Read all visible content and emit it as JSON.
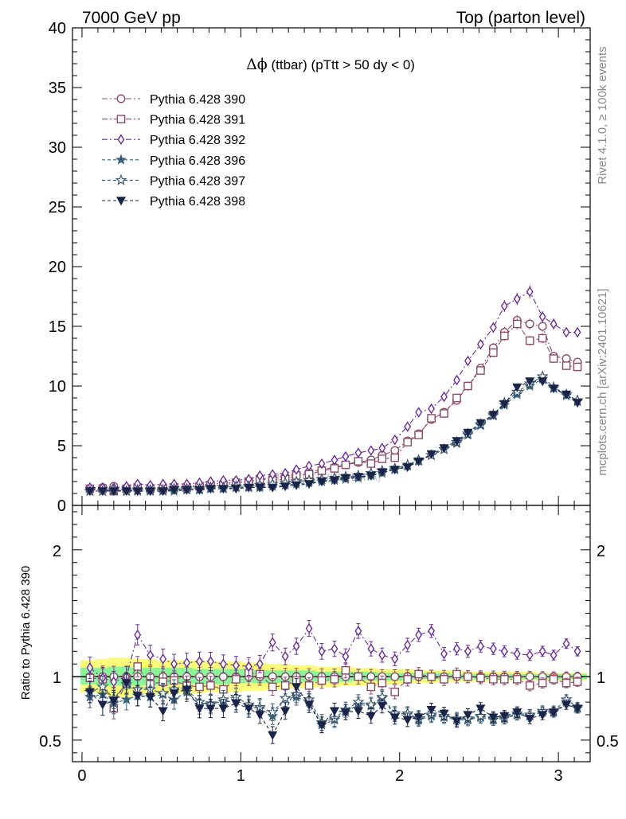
{
  "header": {
    "left": "7000 GeV pp",
    "right": "Top (parton level)"
  },
  "side_labels": {
    "rivet": "Rivet 4.1.0, ≥ 100k events",
    "mcplots": "mcplots.cern.ch [arXiv:2401.10621]"
  },
  "chart_data": {
    "type": "line",
    "title": "Δϕ (ttbar) (pTtt > 50 dy < 0)",
    "title_symbol": "Δϕ",
    "title_rest": " (ttbar) (pTtt > 50 dy < 0)",
    "watermark": "MC PLOTS (HEPDATA)",
    "xlim": [
      -0.06,
      3.2
    ],
    "ylim_main": [
      0,
      40
    ],
    "ylim_ratio": [
      0.33,
      2.35
    ],
    "x_ticks": [
      0,
      1,
      2,
      3
    ],
    "y_ticks_main": [
      0,
      5,
      10,
      15,
      20,
      25,
      30,
      35,
      40
    ],
    "y_ticks_ratio": [
      0.5,
      1,
      2
    ],
    "ratio_ylabel": "Ratio to Pythia 6.428 390",
    "x": [
      0.05,
      0.13,
      0.2,
      0.28,
      0.35,
      0.43,
      0.51,
      0.58,
      0.66,
      0.74,
      0.81,
      0.89,
      0.97,
      1.05,
      1.12,
      1.2,
      1.28,
      1.35,
      1.43,
      1.51,
      1.59,
      1.66,
      1.74,
      1.82,
      1.89,
      1.97,
      2.05,
      2.12,
      2.2,
      2.28,
      2.36,
      2.43,
      2.51,
      2.59,
      2.66,
      2.74,
      2.82,
      2.9,
      2.97,
      3.05,
      3.12
    ],
    "series": [
      {
        "name": "Pythia 6.428 390",
        "color": "#8b4c6b",
        "marker": "circle",
        "dash": "7,3,2,3",
        "values": [
          1.4,
          1.5,
          1.6,
          1.4,
          1.4,
          1.5,
          1.5,
          1.6,
          1.6,
          1.7,
          1.8,
          1.9,
          1.9,
          2.0,
          2.2,
          2.3,
          2.4,
          2.6,
          2.8,
          3.0,
          3.2,
          3.4,
          3.6,
          3.8,
          4.2,
          4.6,
          5.4,
          6.0,
          7.2,
          7.8,
          8.8,
          10.0,
          11.5,
          13.2,
          14.5,
          15.5,
          15.2,
          15.0,
          12.5,
          12.3,
          12.0
        ],
        "ratio": [
          1.0,
          1.0,
          1.0,
          1.0,
          1.0,
          1.0,
          1.0,
          1.0,
          1.0,
          1.0,
          1.0,
          1.0,
          1.0,
          1.0,
          1.0,
          1.0,
          1.0,
          1.0,
          1.0,
          1.0,
          1.0,
          1.0,
          1.0,
          1.0,
          1.0,
          1.0,
          1.0,
          1.0,
          1.0,
          1.0,
          1.0,
          1.0,
          1.0,
          1.0,
          1.0,
          1.0,
          1.0,
          1.0,
          1.0,
          1.0,
          1.0
        ]
      },
      {
        "name": "Pythia 6.428 391",
        "color": "#8b4c6b",
        "marker": "square",
        "dash": "7,3,2,3",
        "values": [
          1.4,
          1.4,
          1.2,
          1.4,
          1.5,
          1.4,
          1.4,
          1.5,
          1.5,
          1.6,
          1.7,
          1.7,
          1.9,
          2.0,
          2.2,
          2.1,
          2.2,
          2.5,
          2.6,
          2.9,
          3.1,
          3.4,
          3.7,
          3.5,
          3.9,
          4.0,
          5.3,
          5.9,
          7.3,
          7.7,
          9.0,
          10.0,
          11.3,
          12.8,
          14.2,
          15.2,
          13.8,
          14.0,
          12.3,
          11.7,
          11.6
        ],
        "ratio": [
          0.99,
          0.98,
          0.75,
          0.95,
          1.08,
          0.94,
          0.96,
          0.97,
          0.93,
          0.92,
          0.93,
          0.9,
          0.98,
          1.03,
          1.02,
          0.92,
          0.93,
          0.97,
          0.93,
          0.97,
          0.98,
          1.05,
          1.0,
          0.92,
          0.95,
          0.88,
          0.98,
          1.02,
          1.0,
          0.98,
          1.02,
          1.0,
          0.99,
          0.98,
          0.98,
          0.98,
          0.93,
          0.95,
          0.98,
          0.95,
          0.96
        ]
      },
      {
        "name": "Pythia 6.428 392",
        "color": "#6a2c9b",
        "marker": "diamond",
        "dash": "7,3,2,3",
        "values": [
          1.5,
          1.5,
          1.5,
          1.6,
          1.8,
          1.7,
          1.8,
          1.8,
          1.8,
          1.9,
          2.0,
          2.1,
          2.1,
          2.2,
          2.5,
          2.6,
          2.7,
          3.0,
          3.3,
          3.5,
          3.8,
          4.1,
          4.4,
          4.6,
          4.8,
          5.5,
          6.6,
          7.8,
          8.1,
          9.1,
          10.5,
          12.1,
          13.5,
          14.9,
          16.7,
          17.3,
          17.9,
          15.8,
          15.2,
          14.5,
          14.5
        ],
        "ratio": [
          1.07,
          0.99,
          0.96,
          1.0,
          1.33,
          1.17,
          1.14,
          1.1,
          1.11,
          1.12,
          1.12,
          1.1,
          1.09,
          1.08,
          1.1,
          1.27,
          1.16,
          1.24,
          1.38,
          1.2,
          1.22,
          1.16,
          1.36,
          1.22,
          1.17,
          1.14,
          1.25,
          1.33,
          1.36,
          1.18,
          1.22,
          1.2,
          1.24,
          1.22,
          1.2,
          1.18,
          1.17,
          1.2,
          1.17,
          1.26,
          1.2
        ]
      },
      {
        "name": "Pythia 6.428 396",
        "color": "#3a6078",
        "marker": "star-filled",
        "dash": "4,3",
        "values": [
          1.2,
          1.2,
          1.2,
          1.2,
          1.2,
          1.2,
          1.2,
          1.2,
          1.3,
          1.3,
          1.4,
          1.4,
          1.5,
          1.5,
          1.5,
          1.6,
          1.7,
          1.8,
          1.9,
          2.0,
          2.1,
          2.2,
          2.3,
          2.5,
          2.7,
          3.0,
          3.3,
          3.7,
          4.2,
          4.7,
          5.2,
          5.9,
          6.7,
          7.5,
          8.4,
          9.3,
          10.0,
          10.6,
          9.8,
          9.2,
          8.7
        ],
        "ratio": [
          0.84,
          0.86,
          0.79,
          0.82,
          0.85,
          0.84,
          0.86,
          0.82,
          0.88,
          0.78,
          0.79,
          0.8,
          0.81,
          0.77,
          0.75,
          0.69,
          0.83,
          0.84,
          0.8,
          0.62,
          0.66,
          0.72,
          0.78,
          0.77,
          0.83,
          0.7,
          0.7,
          0.66,
          0.69,
          0.68,
          0.66,
          0.66,
          0.68,
          0.66,
          0.67,
          0.7,
          0.69,
          0.72,
          0.72,
          0.8,
          0.75
        ]
      },
      {
        "name": "Pythia 6.428 397",
        "color": "#3a5870",
        "marker": "star-open",
        "dash": "4,3",
        "values": [
          1.2,
          1.2,
          1.3,
          1.2,
          1.3,
          1.3,
          1.3,
          1.4,
          1.4,
          1.4,
          1.5,
          1.5,
          1.6,
          1.6,
          1.7,
          1.8,
          1.9,
          2.0,
          2.1,
          2.2,
          2.3,
          2.4,
          2.5,
          2.7,
          2.9,
          3.1,
          3.4,
          3.8,
          4.2,
          4.7,
          5.3,
          6.0,
          6.8,
          7.6,
          8.6,
          9.5,
          10.2,
          10.8,
          9.9,
          9.3,
          8.8
        ],
        "ratio": [
          0.88,
          0.92,
          0.83,
          0.94,
          0.9,
          0.9,
          0.87,
          0.9,
          0.9,
          0.8,
          0.78,
          0.82,
          0.84,
          0.78,
          0.76,
          0.72,
          0.83,
          0.86,
          0.82,
          0.64,
          0.67,
          0.74,
          0.8,
          0.78,
          0.84,
          0.71,
          0.71,
          0.67,
          0.7,
          0.69,
          0.67,
          0.67,
          0.69,
          0.67,
          0.68,
          0.71,
          0.7,
          0.73,
          0.73,
          0.82,
          0.76
        ]
      },
      {
        "name": "Pythia 6.428 398",
        "color": "#1a2448",
        "marker": "triangle-down",
        "dash": "4,3",
        "values": [
          1.2,
          1.2,
          1.2,
          1.2,
          1.2,
          1.2,
          1.2,
          1.3,
          1.3,
          1.3,
          1.4,
          1.4,
          1.4,
          1.5,
          1.5,
          1.5,
          1.6,
          1.7,
          1.8,
          2.0,
          2.1,
          2.3,
          2.4,
          2.5,
          2.8,
          3.0,
          3.2,
          3.7,
          4.3,
          4.8,
          5.4,
          6.1,
          6.9,
          7.6,
          8.5,
          9.9,
          10.4,
          10.4,
          9.8,
          9.3,
          8.6
        ],
        "ratio": [
          0.88,
          0.78,
          0.81,
          0.95,
          0.85,
          0.84,
          0.73,
          0.87,
          0.9,
          0.75,
          0.75,
          0.75,
          0.79,
          0.75,
          0.7,
          0.54,
          0.73,
          0.92,
          0.78,
          0.62,
          0.73,
          0.72,
          0.73,
          0.69,
          0.77,
          0.68,
          0.66,
          0.68,
          0.74,
          0.71,
          0.65,
          0.7,
          0.75,
          0.68,
          0.69,
          0.72,
          0.67,
          0.7,
          0.72,
          0.78,
          0.75
        ]
      }
    ],
    "ratio_band": {
      "outer_color": "#fbfb7a",
      "inner_color": "#8bf59a",
      "reference_line": 1,
      "outer_lo": [
        0.88,
        0.86,
        0.84,
        0.84,
        0.86,
        0.86,
        0.86,
        0.87,
        0.87,
        0.87,
        0.88,
        0.88,
        0.88,
        0.89,
        0.89,
        0.9,
        0.9,
        0.91,
        0.91,
        0.92,
        0.92,
        0.93,
        0.93,
        0.93,
        0.94,
        0.94,
        0.95,
        0.95,
        0.95,
        0.96,
        0.96,
        0.96,
        0.96,
        0.96,
        0.97,
        0.97,
        0.97,
        0.97,
        0.97,
        0.97,
        0.97
      ],
      "outer_hi": [
        1.13,
        1.14,
        1.15,
        1.15,
        1.14,
        1.14,
        1.13,
        1.13,
        1.13,
        1.13,
        1.12,
        1.12,
        1.12,
        1.11,
        1.11,
        1.1,
        1.1,
        1.09,
        1.09,
        1.08,
        1.08,
        1.08,
        1.07,
        1.07,
        1.06,
        1.06,
        1.06,
        1.05,
        1.05,
        1.05,
        1.05,
        1.04,
        1.04,
        1.04,
        1.04,
        1.04,
        1.04,
        1.03,
        1.03,
        1.03,
        1.03
      ],
      "inner_lo": [
        0.94,
        0.93,
        0.93,
        0.93,
        0.93,
        0.93,
        0.93,
        0.94,
        0.94,
        0.94,
        0.94,
        0.94,
        0.95,
        0.95,
        0.95,
        0.95,
        0.95,
        0.96,
        0.96,
        0.96,
        0.96,
        0.96,
        0.97,
        0.97,
        0.97,
        0.97,
        0.97,
        0.98,
        0.98,
        0.98,
        0.98,
        0.98,
        0.98,
        0.98,
        0.98,
        0.98,
        0.98,
        0.98,
        0.98,
        0.98,
        0.98
      ],
      "inner_hi": [
        1.07,
        1.07,
        1.08,
        1.08,
        1.07,
        1.07,
        1.07,
        1.07,
        1.07,
        1.06,
        1.06,
        1.06,
        1.06,
        1.06,
        1.05,
        1.05,
        1.05,
        1.05,
        1.05,
        1.04,
        1.04,
        1.04,
        1.04,
        1.04,
        1.03,
        1.03,
        1.03,
        1.03,
        1.03,
        1.03,
        1.02,
        1.02,
        1.02,
        1.02,
        1.02,
        1.02,
        1.02,
        1.02,
        1.02,
        1.02,
        1.02
      ]
    }
  }
}
